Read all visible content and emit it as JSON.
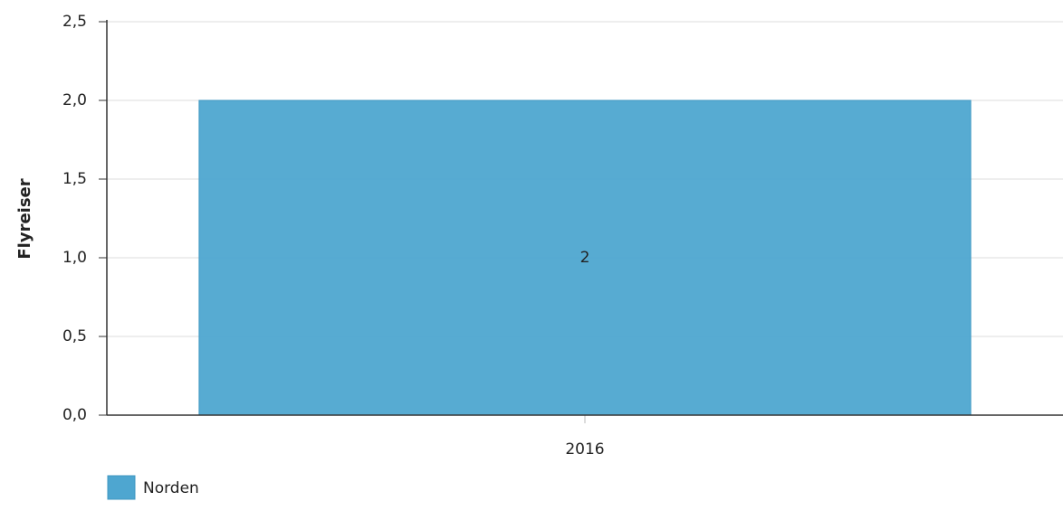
{
  "chart_data": {
    "type": "bar",
    "y_label": "Flyreiser",
    "categories": [
      "2016"
    ],
    "series": [
      {
        "name": "Norden",
        "color": "#4ea6d0",
        "values": [
          2
        ]
      }
    ],
    "ylim": [
      0,
      2.5
    ],
    "yticks": [
      {
        "value": 0,
        "label": "0,0"
      },
      {
        "value": 0.5,
        "label": "0,5"
      },
      {
        "value": 1,
        "label": "1,0"
      },
      {
        "value": 1.5,
        "label": "1,5"
      },
      {
        "value": 2,
        "label": "2,0"
      },
      {
        "value": 2.5,
        "label": "2,5"
      }
    ],
    "grid": true,
    "legend": "bottom-left"
  }
}
